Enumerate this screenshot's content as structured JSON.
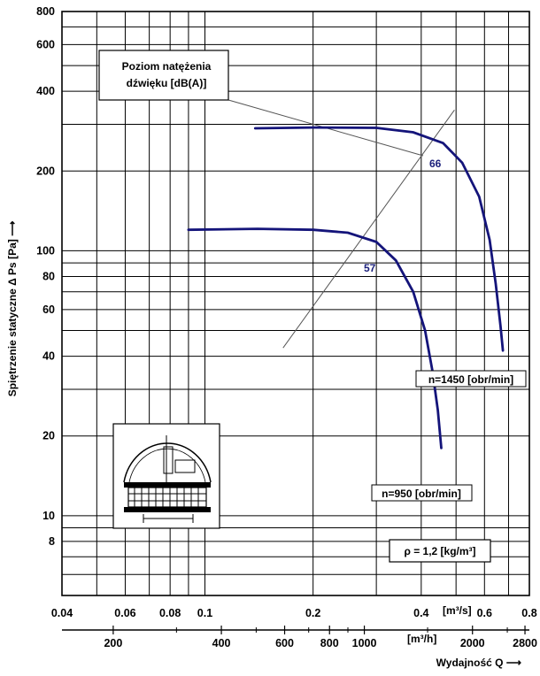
{
  "chart_data": {
    "type": "line",
    "y_axis_label": "Spiętrzenie statyczne Δ Ps [Pa] ⟶",
    "x_axis_label": "Wydajność Q ⟶",
    "x_unit_top": "[m³/s]",
    "x_unit_bottom": "[m³/h]",
    "y_scale": "log",
    "x_scale": "log",
    "ylim": [
      5,
      800
    ],
    "xlim_m3s": [
      0.04,
      0.8
    ],
    "y_ticks": [
      "800",
      "600",
      "400",
      "200",
      "100",
      "80",
      "60",
      "40",
      "20",
      "10",
      "8"
    ],
    "x_ticks_top": [
      "0.04",
      "0.06",
      "0.08",
      "0.1",
      "0.2",
      "0.4",
      "0.6",
      "0.8"
    ],
    "x_ticks_bottom": [
      "200",
      "400",
      "600",
      "800",
      "1000",
      "2000",
      "2800"
    ],
    "series": [
      {
        "name": "n=1450 [obr/min]",
        "color": "#14147a",
        "points": [
          [
            0.138,
            290
          ],
          [
            0.2,
            292
          ],
          [
            0.3,
            291
          ],
          [
            0.38,
            280
          ],
          [
            0.46,
            255
          ],
          [
            0.52,
            215
          ],
          [
            0.58,
            160
          ],
          [
            0.62,
            110
          ],
          [
            0.645,
            75
          ],
          [
            0.665,
            52
          ],
          [
            0.675,
            42
          ]
        ]
      },
      {
        "name": "n=950 [obr/min]",
        "color": "#14147a",
        "points": [
          [
            0.09,
            120
          ],
          [
            0.14,
            121
          ],
          [
            0.2,
            120
          ],
          [
            0.25,
            117
          ],
          [
            0.3,
            108
          ],
          [
            0.34,
            92
          ],
          [
            0.38,
            70
          ],
          [
            0.41,
            50
          ],
          [
            0.43,
            35
          ],
          [
            0.445,
            25
          ],
          [
            0.455,
            18
          ]
        ]
      }
    ],
    "sound_line": {
      "label": "Poziom natężenia dźwięku [dB(A)]",
      "color": "#555555",
      "points": [
        [
          0.165,
          43
        ],
        [
          0.495,
          340
        ]
      ],
      "markers": [
        {
          "value": "57",
          "x": 0.275,
          "y": 97
        },
        {
          "value": "66",
          "x": 0.436,
          "y": 235
        }
      ]
    },
    "density_note": "ρ = 1,2 [kg/m³]"
  }
}
